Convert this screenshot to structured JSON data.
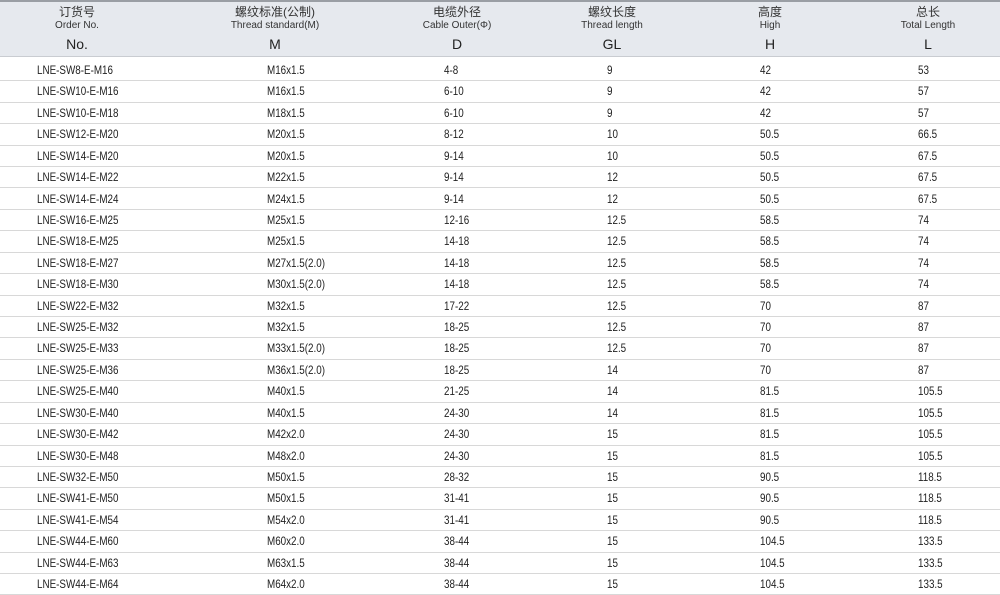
{
  "columns": [
    {
      "cn": "订货号",
      "en": "Order No.",
      "sym": "No."
    },
    {
      "cn": "螺纹标准(公制)",
      "en": "Thread standard(M)",
      "sym": "M"
    },
    {
      "cn": "电缆外径",
      "en": "Cable Outer(Φ)",
      "sym": "D"
    },
    {
      "cn": "螺纹长度",
      "en": "Thread length",
      "sym": "GL"
    },
    {
      "cn": "高度",
      "en": "High",
      "sym": "H"
    },
    {
      "cn": "总长",
      "en": "Total Length",
      "sym": "L"
    }
  ],
  "rows": [
    [
      "LNE-SW8-E-M16",
      "M16x1.5",
      "4-8",
      "9",
      "42",
      "53"
    ],
    [
      "LNE-SW10-E-M16",
      "M16x1.5",
      "6-10",
      "9",
      "42",
      "57"
    ],
    [
      "LNE-SW10-E-M18",
      "M18x1.5",
      "6-10",
      "9",
      "42",
      "57"
    ],
    [
      "LNE-SW12-E-M20",
      "M20x1.5",
      "8-12",
      "10",
      "50.5",
      "66.5"
    ],
    [
      "LNE-SW14-E-M20",
      "M20x1.5",
      "9-14",
      "10",
      "50.5",
      "67.5"
    ],
    [
      "LNE-SW14-E-M22",
      "M22x1.5",
      "9-14",
      "12",
      "50.5",
      "67.5"
    ],
    [
      "LNE-SW14-E-M24",
      "M24x1.5",
      "9-14",
      "12",
      "50.5",
      "67.5"
    ],
    [
      "LNE-SW16-E-M25",
      "M25x1.5",
      "12-16",
      "12.5",
      "58.5",
      "74"
    ],
    [
      "LNE-SW18-E-M25",
      "M25x1.5",
      "14-18",
      "12.5",
      "58.5",
      "74"
    ],
    [
      "LNE-SW18-E-M27",
      "M27x1.5(2.0)",
      "14-18",
      "12.5",
      "58.5",
      "74"
    ],
    [
      "LNE-SW18-E-M30",
      "M30x1.5(2.0)",
      "14-18",
      "12.5",
      "58.5",
      "74"
    ],
    [
      "LNE-SW22-E-M32",
      "M32x1.5",
      "17-22",
      "12.5",
      "70",
      "87"
    ],
    [
      "LNE-SW25-E-M32",
      "M32x1.5",
      "18-25",
      "12.5",
      "70",
      "87"
    ],
    [
      "LNE-SW25-E-M33",
      "M33x1.5(2.0)",
      "18-25",
      "12.5",
      "70",
      "87"
    ],
    [
      "LNE-SW25-E-M36",
      "M36x1.5(2.0)",
      "18-25",
      "14",
      "70",
      "87"
    ],
    [
      "LNE-SW25-E-M40",
      "M40x1.5",
      "21-25",
      "14",
      "81.5",
      "105.5"
    ],
    [
      "LNE-SW30-E-M40",
      "M40x1.5",
      "24-30",
      "14",
      "81.5",
      "105.5"
    ],
    [
      "LNE-SW30-E-M42",
      "M42x2.0",
      "24-30",
      "15",
      "81.5",
      "105.5"
    ],
    [
      "LNE-SW30-E-M48",
      "M48x2.0",
      "24-30",
      "15",
      "81.5",
      "105.5"
    ],
    [
      "LNE-SW32-E-M50",
      "M50x1.5",
      "28-32",
      "15",
      "90.5",
      "118.5"
    ],
    [
      "LNE-SW41-E-M50",
      "M50x1.5",
      "31-41",
      "15",
      "90.5",
      "118.5"
    ],
    [
      "LNE-SW41-E-M54",
      "M54x2.0",
      "31-41",
      "15",
      "90.5",
      "118.5"
    ],
    [
      "LNE-SW44-E-M60",
      "M60x2.0",
      "38-44",
      "15",
      "104.5",
      "133.5"
    ],
    [
      "LNE-SW44-E-M63",
      "M63x1.5",
      "38-44",
      "15",
      "104.5",
      "133.5"
    ],
    [
      "LNE-SW44-E-M64",
      "M64x2.0",
      "38-44",
      "15",
      "104.5",
      "133.5"
    ]
  ]
}
